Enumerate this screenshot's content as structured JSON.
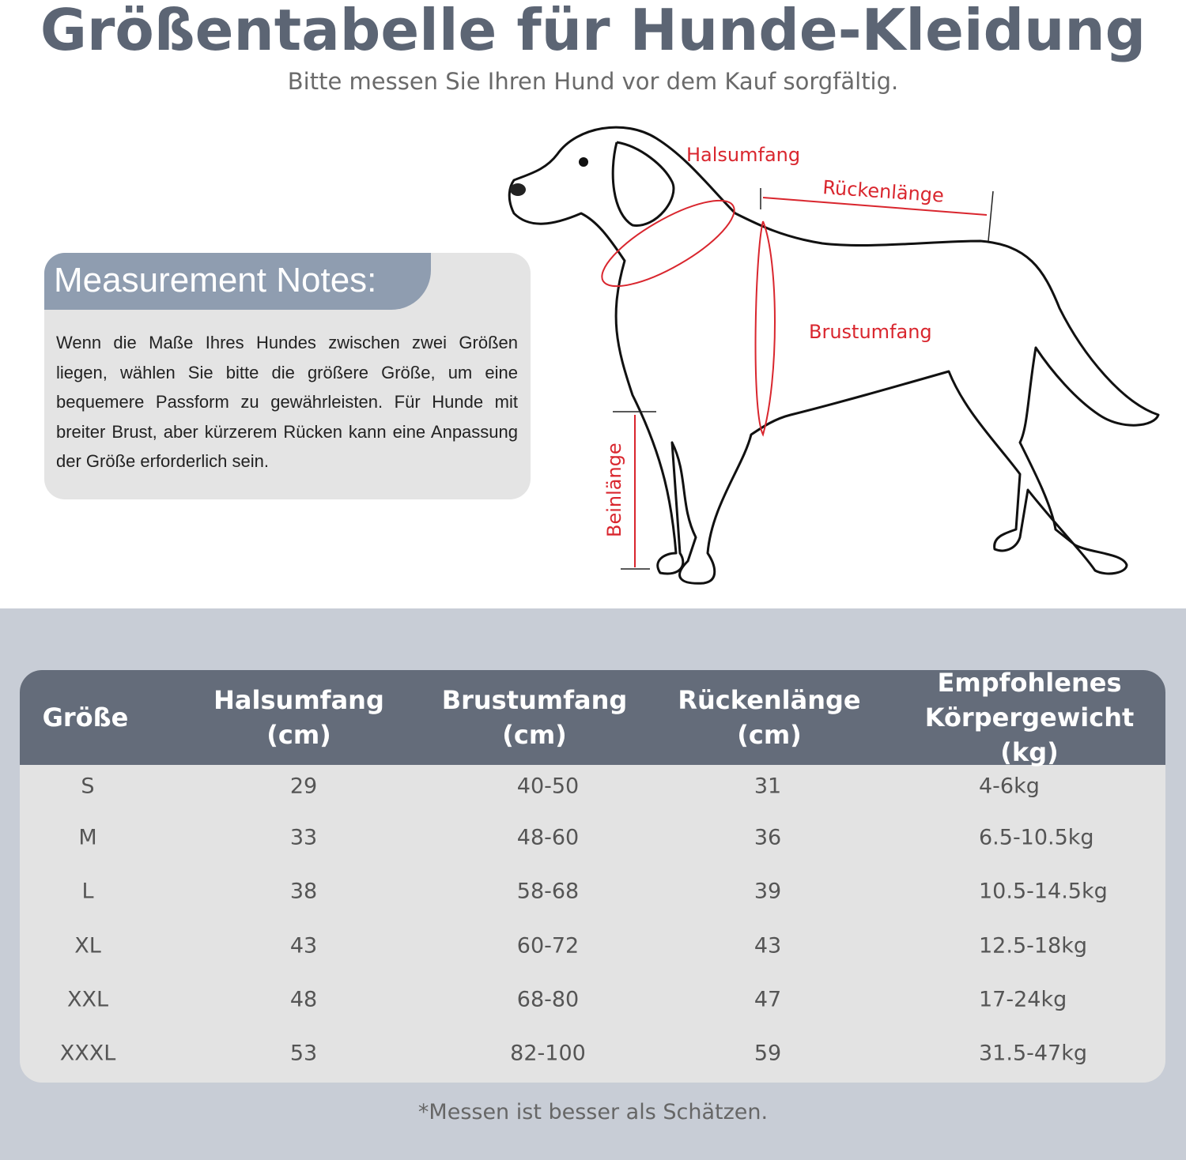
{
  "header": {
    "title": "Größentabelle für Hunde-Kleidung",
    "subtitle": "Bitte messen Sie Ihren Hund vor dem Kauf sorgfältig."
  },
  "notes": {
    "heading": "Measurement Notes:",
    "body": "Wenn die Maße Ihres Hundes zwischen zwei Größen liegen, wählen Sie bitte die größere Größe, um eine bequemere Passform zu gewährleisten. Für Hunde mit breiter Brust, aber kürzerem Rücken kann eine Anpassung der Größe erforderlich sein."
  },
  "diagram": {
    "labels": {
      "neck": "Halsumfang",
      "back": "Rückenlänge",
      "chest": "Brustumfang",
      "leg": "Beinlänge"
    },
    "accent_color": "#d9262e"
  },
  "table": {
    "headers": [
      "Größe",
      "Halsumfang (cm)",
      "Brustumfang (cm)",
      "Rückenlänge (cm)",
      "Empfohlenes Körpergewicht (kg)"
    ],
    "rows": [
      [
        "S",
        "29",
        "40-50",
        "31",
        "4-6kg"
      ],
      [
        "M",
        "33",
        "48-60",
        "36",
        "6.5-10.5kg"
      ],
      [
        "L",
        "38",
        "58-68",
        "39",
        "10.5-14.5kg"
      ],
      [
        "XL",
        "43",
        "60-72",
        "43",
        "12.5-18kg"
      ],
      [
        "XXL",
        "48",
        "68-80",
        "47",
        "17-24kg"
      ],
      [
        "XXXL",
        "53",
        "82-100",
        "59",
        "31.5-47kg"
      ]
    ],
    "header_color": "#646c7a"
  },
  "footer": {
    "note": "*Messen ist besser als Schätzen."
  }
}
